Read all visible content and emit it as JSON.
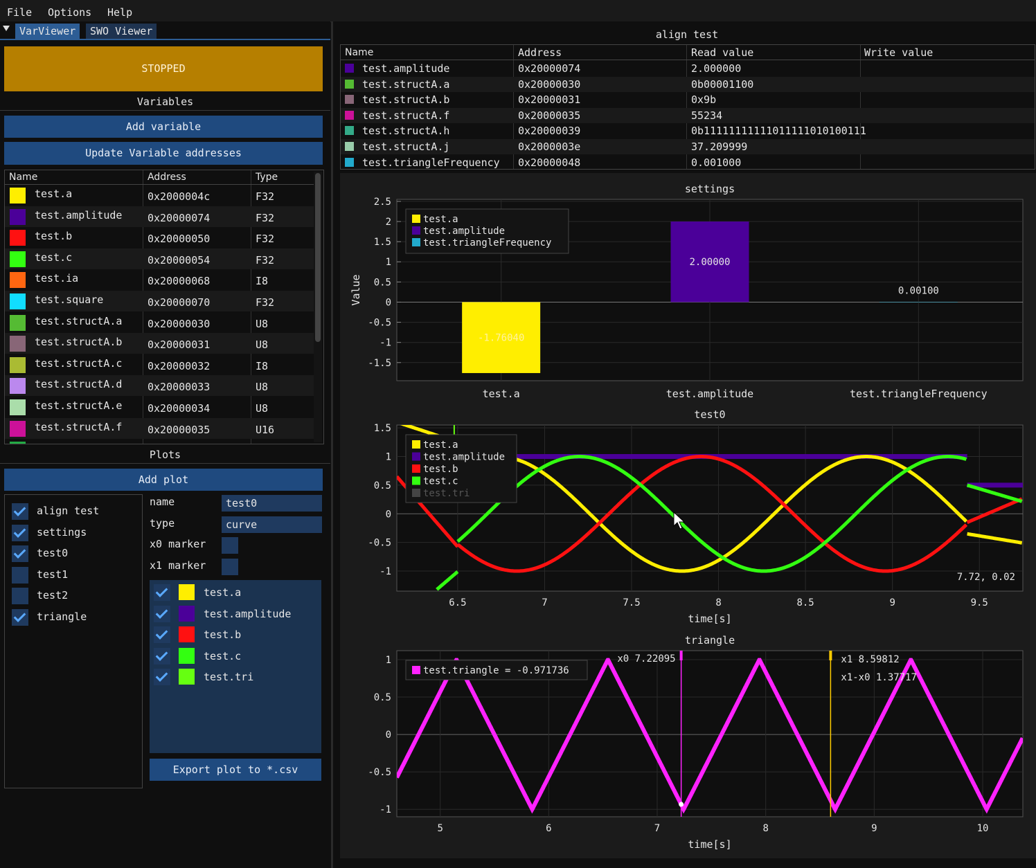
{
  "menu": {
    "file": "File",
    "options": "Options",
    "help": "Help"
  },
  "tabs": {
    "varviewer": "VarViewer",
    "swo": "SWO Viewer"
  },
  "status": {
    "label": "STOPPED",
    "color": "#b67f00"
  },
  "variables": {
    "header": "Variables",
    "add_button": "Add variable",
    "update_button": "Update Variable addresses",
    "columns": [
      "Name",
      "Address",
      "Type"
    ],
    "rows": [
      {
        "name": "test.a",
        "address": "0x2000004c",
        "type": "F32",
        "color": "#ffee00"
      },
      {
        "name": "test.amplitude",
        "address": "0x20000074",
        "type": "F32",
        "color": "#4b0099"
      },
      {
        "name": "test.b",
        "address": "0x20000050",
        "type": "F32",
        "color": "#ff1111"
      },
      {
        "name": "test.c",
        "address": "0x20000054",
        "type": "F32",
        "color": "#33ff11"
      },
      {
        "name": "test.ia",
        "address": "0x20000068",
        "type": "I8",
        "color": "#ff6611"
      },
      {
        "name": "test.square",
        "address": "0x20000070",
        "type": "F32",
        "color": "#11ddff"
      },
      {
        "name": "test.structA.a",
        "address": "0x20000030",
        "type": "U8",
        "color": "#55bb33"
      },
      {
        "name": "test.structA.b",
        "address": "0x20000031",
        "type": "U8",
        "color": "#886677"
      },
      {
        "name": "test.structA.c",
        "address": "0x20000032",
        "type": "I8",
        "color": "#aabb33"
      },
      {
        "name": "test.structA.d",
        "address": "0x20000033",
        "type": "U8",
        "color": "#bb88ee"
      },
      {
        "name": "test.structA.e",
        "address": "0x20000034",
        "type": "U8",
        "color": "#aaddaa"
      },
      {
        "name": "test.structA.f",
        "address": "0x20000035",
        "type": "U16",
        "color": "#cc1199"
      }
    ]
  },
  "plots": {
    "header": "Plots",
    "add_button": "Add plot",
    "list": [
      {
        "name": "align test",
        "checked": true
      },
      {
        "name": "settings",
        "checked": true
      },
      {
        "name": "test0",
        "checked": true
      },
      {
        "name": "test1",
        "checked": false
      },
      {
        "name": "test2",
        "checked": false
      },
      {
        "name": "triangle",
        "checked": true
      }
    ],
    "props": {
      "name_label": "name",
      "name_value": "test0",
      "type_label": "type",
      "type_value": "curve",
      "x0_label": "x0 marker",
      "x1_label": "x1 marker"
    },
    "series": [
      {
        "name": "test.a",
        "color": "#ffee00"
      },
      {
        "name": "test.amplitude",
        "color": "#4b0099"
      },
      {
        "name": "test.b",
        "color": "#ff1111"
      },
      {
        "name": "test.c",
        "color": "#33ff11"
      },
      {
        "name": "test.tri",
        "color": "#66ff11"
      }
    ],
    "export_button": "Export plot to *.csv"
  },
  "align_table": {
    "title": "align test",
    "columns": [
      "Name",
      "Address",
      "Read value",
      "Write value"
    ],
    "rows": [
      {
        "name": "test.amplitude",
        "address": "0x20000074",
        "read": "2.000000",
        "color": "#4b0099"
      },
      {
        "name": "test.structA.a",
        "address": "0x20000030",
        "read": "0b00001100",
        "color": "#55bb33"
      },
      {
        "name": "test.structA.b",
        "address": "0x20000031",
        "read": "0x9b",
        "color": "#886677"
      },
      {
        "name": "test.structA.f",
        "address": "0x20000035",
        "read": "55234",
        "color": "#cc1199"
      },
      {
        "name": "test.structA.h",
        "address": "0x20000039",
        "read": "0b11111111111011111010100111",
        "color": "#33aa88"
      },
      {
        "name": "test.structA.j",
        "address": "0x2000003e",
        "read": "37.209999",
        "color": "#99ccaa"
      },
      {
        "name": "test.triangleFrequency",
        "address": "0x20000048",
        "read": "0.001000",
        "color": "#22aacc"
      }
    ]
  },
  "chart_data": [
    {
      "type": "bar",
      "title": "settings",
      "ylabel": "Value",
      "ylim": [
        -1.95,
        2.55
      ],
      "yticks": [
        "2.5",
        "2",
        "1.5",
        "1",
        "0.5",
        "0",
        "-0.5",
        "-1",
        "-1.5"
      ],
      "categories": [
        "test.a",
        "test.amplitude",
        "test.triangleFrequency"
      ],
      "values": [
        -1.7604,
        2.0,
        0.001
      ],
      "labels": [
        "-1.76040",
        "2.00000",
        "0.00100"
      ],
      "colors": [
        "#ffee00",
        "#4b0099",
        "#22aacc"
      ],
      "legend": [
        "test.a",
        "test.amplitude",
        "test.triangleFrequency"
      ],
      "legend_position": "top-left"
    },
    {
      "type": "line",
      "title": "test0",
      "xlabel": "time[s]",
      "xlim": [
        6.15,
        9.75
      ],
      "ylim": [
        -1.35,
        1.55
      ],
      "xticks": [
        "6.5",
        "7",
        "7.5",
        "8",
        "8.5",
        "9",
        "9.5"
      ],
      "yticks": [
        "1.5",
        "1",
        "0.5",
        "0",
        "-0.5",
        "-1"
      ],
      "legend": [
        "test.a",
        "test.amplitude",
        "test.b",
        "test.c",
        "test.tri"
      ],
      "legend_position": "top-left",
      "cursor_readout": "7.72, 0.02"
    },
    {
      "type": "line",
      "title": "triangle",
      "xlabel": "time[s]",
      "xlim": [
        4.6,
        10.37
      ],
      "ylim": [
        -1.1,
        1.12
      ],
      "xticks": [
        "5",
        "6",
        "7",
        "8",
        "9",
        "10"
      ],
      "yticks": [
        "1",
        "0.5",
        "0",
        "-0.5",
        "-1"
      ],
      "legend": [
        "test.triangle = -0.971736"
      ],
      "legend_position": "top-left",
      "markers": {
        "x0": "x0 7.22095",
        "x1": "x1 8.59812",
        "dx": "x1-x0 1.37717",
        "x0_value": 7.22095,
        "x1_value": 8.59812
      }
    }
  ]
}
